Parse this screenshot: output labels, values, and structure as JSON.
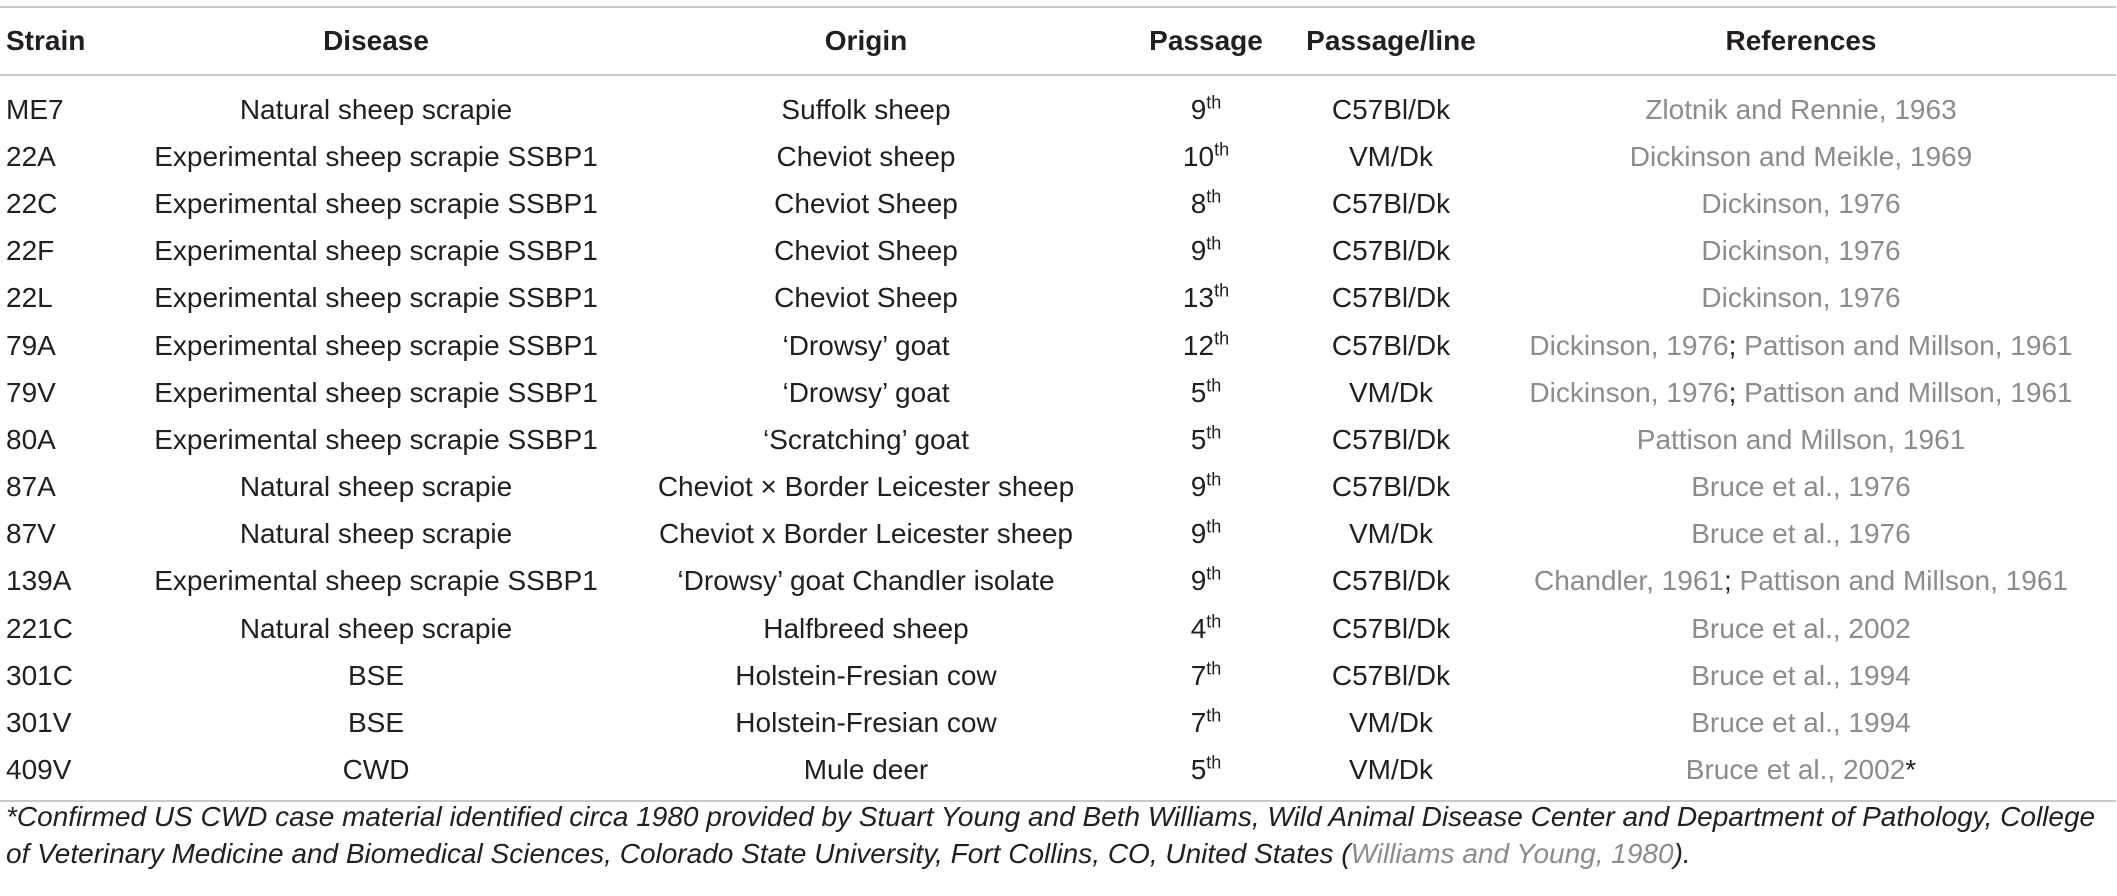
{
  "table": {
    "headers": [
      "Strain",
      "Disease",
      "Origin",
      "Passage",
      "Passage/line",
      "References"
    ],
    "rows": [
      {
        "strain": "ME7",
        "disease": "Natural sheep scrapie",
        "origin": "Suffolk sheep",
        "passage_num": "9",
        "passage_sup": "th",
        "line": "C57Bl/Dk",
        "refs": [
          "Zlotnik and Rennie, 1963"
        ],
        "ref_suffix": ""
      },
      {
        "strain": "22A",
        "disease": "Experimental sheep scrapie SSBP1",
        "origin": "Cheviot sheep",
        "passage_num": "10",
        "passage_sup": "th",
        "line": "VM/Dk",
        "refs": [
          "Dickinson and Meikle, 1969"
        ],
        "ref_suffix": ""
      },
      {
        "strain": "22C",
        "disease": "Experimental sheep scrapie SSBP1",
        "origin": "Cheviot Sheep",
        "passage_num": "8",
        "passage_sup": "th",
        "line": "C57Bl/Dk",
        "refs": [
          "Dickinson, 1976"
        ],
        "ref_suffix": ""
      },
      {
        "strain": "22F",
        "disease": "Experimental sheep scrapie SSBP1",
        "origin": "Cheviot Sheep",
        "passage_num": "9",
        "passage_sup": "th",
        "line": "C57Bl/Dk",
        "refs": [
          "Dickinson, 1976"
        ],
        "ref_suffix": ""
      },
      {
        "strain": "22L",
        "disease": "Experimental sheep scrapie SSBP1",
        "origin": "Cheviot Sheep",
        "passage_num": "13",
        "passage_sup": "th",
        "line": "C57Bl/Dk",
        "refs": [
          "Dickinson, 1976"
        ],
        "ref_suffix": ""
      },
      {
        "strain": "79A",
        "disease": "Experimental sheep scrapie SSBP1",
        "origin": "‘Drowsy’ goat",
        "passage_num": "12",
        "passage_sup": "th",
        "line": "C57Bl/Dk",
        "refs": [
          "Dickinson, 1976",
          "Pattison and Millson, 1961"
        ],
        "ref_suffix": ""
      },
      {
        "strain": "79V",
        "disease": "Experimental sheep scrapie SSBP1",
        "origin": "‘Drowsy’ goat",
        "passage_num": "5",
        "passage_sup": "th",
        "line": "VM/Dk",
        "refs": [
          "Dickinson, 1976",
          "Pattison and Millson, 1961"
        ],
        "ref_suffix": ""
      },
      {
        "strain": "80A",
        "disease": "Experimental sheep scrapie SSBP1",
        "origin": "‘Scratching’ goat",
        "passage_num": "5",
        "passage_sup": "th",
        "line": "C57Bl/Dk",
        "refs": [
          "Pattison and Millson, 1961"
        ],
        "ref_suffix": ""
      },
      {
        "strain": "87A",
        "disease": "Natural sheep scrapie",
        "origin": "Cheviot × Border Leicester sheep",
        "passage_num": "9",
        "passage_sup": "th",
        "line": "C57Bl/Dk",
        "refs": [
          "Bruce et al., 1976"
        ],
        "ref_suffix": ""
      },
      {
        "strain": "87V",
        "disease": "Natural sheep scrapie",
        "origin": "Cheviot x Border Leicester sheep",
        "passage_num": "9",
        "passage_sup": "th",
        "line": "VM/Dk",
        "refs": [
          "Bruce et al., 1976"
        ],
        "ref_suffix": ""
      },
      {
        "strain": "139A",
        "disease": "Experimental sheep scrapie SSBP1",
        "origin": "‘Drowsy’ goat Chandler isolate",
        "passage_num": "9",
        "passage_sup": "th",
        "line": "C57Bl/Dk",
        "refs": [
          "Chandler, 1961",
          "Pattison and Millson, 1961"
        ],
        "ref_suffix": ""
      },
      {
        "strain": "221C",
        "disease": "Natural sheep scrapie",
        "origin": "Halfbreed sheep",
        "passage_num": "4",
        "passage_sup": "th",
        "line": "C57Bl/Dk",
        "refs": [
          "Bruce et al., 2002"
        ],
        "ref_suffix": ""
      },
      {
        "strain": "301C",
        "disease": "BSE",
        "origin": "Holstein-Fresian cow",
        "passage_num": "7",
        "passage_sup": "th",
        "line": "C57Bl/Dk",
        "refs": [
          "Bruce et al., 1994"
        ],
        "ref_suffix": ""
      },
      {
        "strain": "301V",
        "disease": "BSE",
        "origin": "Holstein-Fresian cow",
        "passage_num": "7",
        "passage_sup": "th",
        "line": "VM/Dk",
        "refs": [
          "Bruce et al., 1994"
        ],
        "ref_suffix": ""
      },
      {
        "strain": "409V",
        "disease": "CWD",
        "origin": "Mule deer",
        "passage_num": "5",
        "passage_sup": "th",
        "line": "VM/Dk",
        "refs": [
          "Bruce et al., 2002"
        ],
        "ref_suffix": "*"
      }
    ],
    "ref_separator": "; "
  },
  "footnote": {
    "text": "*Confirmed US CWD case material identified circa 1980 provided by Stuart Young and Beth Williams, Wild Animal Disease Center and Department of Pathology, College of Veterinary Medicine and Biomedical Sciences, Colorado State University, Fort Collins, CO, United States (",
    "ref": "Williams and Young, 1980",
    "end": ")."
  },
  "colors": {
    "text": "#231f20",
    "reference_link": "#8c8c8c",
    "rule": "#c9c9c9"
  }
}
